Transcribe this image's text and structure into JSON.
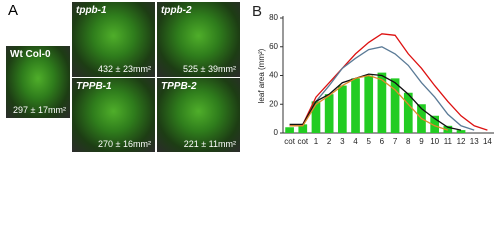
{
  "panel_a": {
    "label": "A",
    "photos": [
      {
        "title": "Wt Col-0",
        "area": "297 ± 17mm²"
      },
      {
        "title": "tppb-1",
        "area": "432 ± 23mm²"
      },
      {
        "title": "tppb-2",
        "area": "525 ± 39mm²"
      },
      {
        "title": "TPPB-1",
        "area": "270 ± 16mm²"
      },
      {
        "title": "TPPB-2",
        "area": "221 ± 11mm²"
      }
    ]
  },
  "chart_data": {
    "type": "bar",
    "panel_label": "B",
    "ylabel": "leaf area (mm²)",
    "categories": [
      "cot",
      "cot",
      "1",
      "2",
      "3",
      "4",
      "5",
      "6",
      "7",
      "8",
      "9",
      "10",
      "11",
      "12",
      "13",
      "14"
    ],
    "ylim": [
      0,
      80
    ],
    "yticks": [
      0,
      20,
      40,
      60,
      80
    ],
    "series": [
      {
        "kind": "bar",
        "color": "#22cc22",
        "values": [
          4,
          6,
          22,
          27,
          33,
          38,
          40,
          42,
          38,
          28,
          20,
          12,
          5,
          2,
          null,
          null
        ]
      },
      {
        "kind": "line",
        "color": "#dd1111",
        "values": [
          5,
          6,
          25,
          35,
          45,
          55,
          63,
          69,
          68,
          55,
          45,
          33,
          22,
          12,
          5,
          2
        ]
      },
      {
        "kind": "line",
        "color": "#5a7a96",
        "values": [
          5,
          5,
          22,
          33,
          45,
          52,
          58,
          60,
          55,
          47,
          35,
          25,
          13,
          5,
          2,
          null
        ]
      },
      {
        "kind": "line",
        "color": "#111111",
        "values": [
          6,
          6,
          22,
          27,
          35,
          38,
          41,
          40,
          35,
          27,
          17,
          10,
          4,
          2,
          null,
          null
        ]
      },
      {
        "kind": "line",
        "color": "#e0892a",
        "values": [
          5,
          5,
          20,
          26,
          33,
          38,
          40,
          37,
          30,
          20,
          10,
          5,
          2,
          null,
          null,
          null
        ]
      }
    ]
  }
}
